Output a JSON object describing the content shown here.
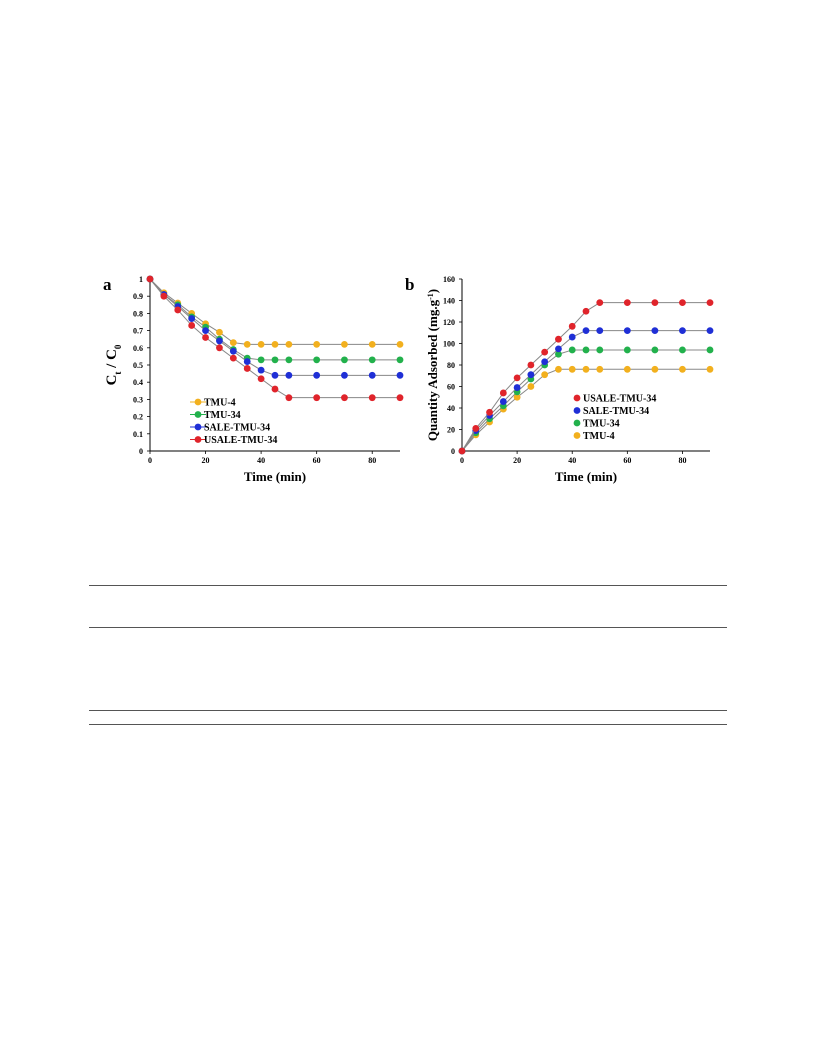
{
  "chart_data": [
    {
      "type": "line",
      "panel_label": "a",
      "xlabel": "Time (min)",
      "ylabel": "Ct / C0",
      "ylabel_main_left": "C",
      "ylabel_sub_left": "t",
      "ylabel_slash": " / C",
      "ylabel_sub_right": "0",
      "xlim": [
        0,
        90
      ],
      "ylim": [
        0,
        1
      ],
      "xticks": [
        0,
        20,
        40,
        60,
        80
      ],
      "xtick_labels": [
        "0",
        "20",
        "40",
        "60",
        "80"
      ],
      "yticks": [
        0,
        0.1,
        0.2,
        0.3,
        0.4,
        0.5,
        0.6,
        0.7,
        0.8,
        0.9,
        1
      ],
      "ytick_labels": [
        "0",
        "0.1",
        "0.2",
        "0.3",
        "0.4",
        "0.5",
        "0.6",
        "0.7",
        "0.8",
        "0.9",
        "1"
      ],
      "legend_position": "bottom-left",
      "legend_order": [
        0,
        1,
        2,
        3
      ],
      "series": [
        {
          "name": "TMU-4",
          "color": "#f2b01e",
          "x": [
            0,
            5,
            10,
            15,
            20,
            25,
            30,
            35,
            40,
            45,
            50,
            60,
            70,
            80,
            90
          ],
          "y": [
            1,
            0.92,
            0.86,
            0.8,
            0.74,
            0.69,
            0.63,
            0.62,
            0.62,
            0.62,
            0.62,
            0.62,
            0.62,
            0.62,
            0.62
          ]
        },
        {
          "name": "TMU-34",
          "color": "#22b14c",
          "x": [
            0,
            5,
            10,
            15,
            20,
            25,
            30,
            35,
            40,
            45,
            50,
            60,
            70,
            80,
            90
          ],
          "y": [
            1,
            0.91,
            0.85,
            0.78,
            0.72,
            0.65,
            0.59,
            0.54,
            0.53,
            0.53,
            0.53,
            0.53,
            0.53,
            0.53,
            0.53
          ]
        },
        {
          "name": "SALE-TMU-34",
          "color": "#1f2fd6",
          "x": [
            0,
            5,
            10,
            15,
            20,
            25,
            30,
            35,
            40,
            45,
            50,
            60,
            70,
            80,
            90
          ],
          "y": [
            1,
            0.91,
            0.84,
            0.77,
            0.7,
            0.64,
            0.58,
            0.52,
            0.47,
            0.44,
            0.44,
            0.44,
            0.44,
            0.44,
            0.44
          ]
        },
        {
          "name": "USALE-TMU-34",
          "color": "#e0242b",
          "x": [
            0,
            5,
            10,
            15,
            20,
            25,
            30,
            35,
            40,
            45,
            50,
            60,
            70,
            80,
            90
          ],
          "y": [
            1,
            0.9,
            0.82,
            0.73,
            0.66,
            0.6,
            0.54,
            0.48,
            0.42,
            0.36,
            0.31,
            0.31,
            0.31,
            0.31,
            0.31
          ]
        }
      ]
    },
    {
      "type": "line",
      "panel_label": "b",
      "xlabel": "Time (min)",
      "ylabel": "Quantity Adsorbed (mg.g-1)",
      "ylabel_main": "Quantity Adsorbed (mg.g",
      "ylabel_sup": "-1",
      "ylabel_close": ")",
      "xlim": [
        0,
        90
      ],
      "ylim": [
        0,
        160
      ],
      "xticks": [
        0,
        20,
        40,
        60,
        80
      ],
      "xtick_labels": [
        "0",
        "20",
        "40",
        "60",
        "80"
      ],
      "yticks": [
        0,
        20,
        40,
        60,
        80,
        100,
        120,
        140,
        160
      ],
      "ytick_labels": [
        "0",
        "20",
        "40",
        "60",
        "80",
        "100",
        "120",
        "140",
        "160"
      ],
      "legend_position": "bottom-right",
      "legend_order": [
        3,
        2,
        1,
        0
      ],
      "series": [
        {
          "name": "TMU-4",
          "color": "#f2b01e",
          "x": [
            0,
            5,
            10,
            15,
            20,
            25,
            30,
            35,
            40,
            45,
            50,
            60,
            70,
            80,
            90
          ],
          "y": [
            0,
            15,
            27,
            39,
            50,
            60,
            71,
            76,
            76,
            76,
            76,
            76,
            76,
            76,
            76
          ]
        },
        {
          "name": "TMU-34",
          "color": "#22b14c",
          "x": [
            0,
            5,
            10,
            15,
            20,
            25,
            30,
            35,
            40,
            45,
            50,
            60,
            70,
            80,
            90
          ],
          "y": [
            0,
            17,
            30,
            42,
            55,
            67,
            80,
            90,
            94,
            94,
            94,
            94,
            94,
            94,
            94
          ]
        },
        {
          "name": "SALE-TMU-34",
          "color": "#1f2fd6",
          "x": [
            0,
            5,
            10,
            15,
            20,
            25,
            30,
            35,
            40,
            45,
            50,
            60,
            70,
            80,
            90
          ],
          "y": [
            0,
            19,
            33,
            46,
            59,
            71,
            83,
            95,
            106,
            112,
            112,
            112,
            112,
            112,
            112
          ]
        },
        {
          "name": "USALE-TMU-34",
          "color": "#e0242b",
          "x": [
            0,
            5,
            10,
            15,
            20,
            25,
            30,
            35,
            40,
            45,
            50,
            60,
            70,
            80,
            90
          ],
          "y": [
            0,
            21,
            36,
            54,
            68,
            80,
            92,
            104,
            116,
            130,
            138,
            138,
            138,
            138,
            138
          ]
        }
      ]
    }
  ]
}
